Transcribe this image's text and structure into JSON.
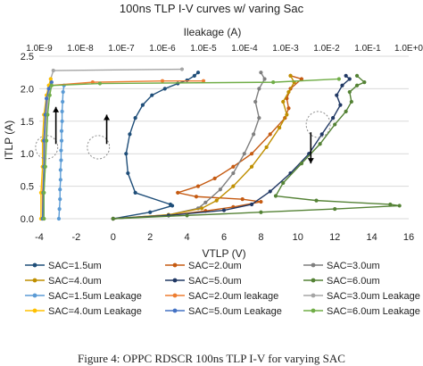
{
  "figure": {
    "caption": "Figure 4: OPPC RDSCR 100ns TLP I-V for varying SAC"
  },
  "chart_data": {
    "type": "scatter",
    "title": "100ns TLP I-V curves w/ varing Sac",
    "xlabel": "VTLP (V)",
    "ylabel": "ITLP (A)",
    "x2label": "Ileakage (A)",
    "xlim": [
      -4,
      16
    ],
    "ylim": [
      0,
      2.5
    ],
    "x2lim": [
      1e-09,
      1
    ],
    "x2scale": "log",
    "xticks": [
      "-4",
      "-2",
      "0",
      "2",
      "4",
      "6",
      "8",
      "10",
      "12",
      "14",
      "16"
    ],
    "yticks": [
      "0.0",
      "0.5",
      "1.0",
      "1.5",
      "2.0",
      "2.5"
    ],
    "x2ticks": [
      "1.0E-9",
      "1.0E-8",
      "1.0E-7",
      "1.0E-6",
      "1.0E-5",
      "1.0E-4",
      "1.0E-3",
      "1.0E-2",
      "1.0E-1",
      "1.0E+0"
    ],
    "grid": "horizontal",
    "legend_position": "bottom",
    "series": [
      {
        "name": "SAC=1.5um",
        "color": "#1f4e79",
        "axis": "bottom",
        "x": [
          0,
          2.0,
          3.2,
          3.1,
          1.2,
          0.8,
          0.7,
          0.9,
          1.2,
          1.6,
          2.1,
          2.8,
          3.5,
          4.0,
          4.4,
          4.6
        ],
        "y": [
          0.0,
          0.1,
          0.2,
          0.22,
          0.4,
          0.7,
          1.0,
          1.3,
          1.55,
          1.75,
          1.9,
          2.0,
          2.08,
          2.13,
          2.2,
          2.25
        ]
      },
      {
        "name": "SAC=2.0um",
        "color": "#c55a11",
        "axis": "bottom",
        "x": [
          0,
          3.0,
          5.0,
          6.5,
          8.0,
          7.0,
          4.5,
          3.5,
          4.6,
          5.5,
          6.5,
          7.5,
          8.5,
          9.3,
          9.5,
          9.4,
          9.6,
          10.2,
          9.6
        ],
        "y": [
          0.0,
          0.05,
          0.12,
          0.18,
          0.26,
          0.3,
          0.34,
          0.4,
          0.5,
          0.62,
          0.8,
          1.0,
          1.3,
          1.55,
          1.7,
          1.85,
          2.0,
          2.15,
          2.2
        ]
      },
      {
        "name": "SAC=3.0um",
        "color": "#7f7f7f",
        "axis": "bottom",
        "x": [
          0,
          3.0,
          4.6,
          5.0,
          5.8,
          6.5,
          7.1,
          7.6,
          7.9,
          7.7,
          7.9,
          8.2,
          8.0
        ],
        "y": [
          0.0,
          0.06,
          0.16,
          0.25,
          0.45,
          0.7,
          1.0,
          1.3,
          1.55,
          1.8,
          2.0,
          2.15,
          2.25
        ]
      },
      {
        "name": "SAC=4.0um",
        "color": "#bf8f00",
        "axis": "bottom",
        "x": [
          0,
          3.0,
          4.8,
          5.6,
          6.5,
          7.5,
          8.3,
          9.0,
          9.4,
          9.2,
          9.5,
          9.8,
          9.6
        ],
        "y": [
          0.0,
          0.06,
          0.16,
          0.28,
          0.5,
          0.8,
          1.1,
          1.4,
          1.6,
          1.8,
          1.95,
          2.1,
          2.2
        ]
      },
      {
        "name": "SAC=5.0um",
        "color": "#203864",
        "axis": "bottom",
        "x": [
          0,
          3.0,
          6.0,
          7.5,
          8.5,
          9.6,
          10.6,
          11.3,
          11.9,
          12.3,
          12.1,
          12.4,
          12.8,
          12.6
        ],
        "y": [
          0.0,
          0.05,
          0.13,
          0.22,
          0.42,
          0.7,
          1.0,
          1.3,
          1.55,
          1.75,
          1.9,
          2.05,
          2.15,
          2.2
        ]
      },
      {
        "name": "SAC=6.0um",
        "color": "#548235",
        "axis": "bottom",
        "x": [
          0,
          4.0,
          8.0,
          12.0,
          15.5,
          15.0,
          11.0,
          8.8,
          9.2,
          10.2,
          11.2,
          12.0,
          12.6,
          12.9,
          12.8,
          13.2,
          13.6,
          13.2
        ],
        "y": [
          0.0,
          0.05,
          0.1,
          0.15,
          0.2,
          0.22,
          0.28,
          0.35,
          0.55,
          0.85,
          1.15,
          1.45,
          1.65,
          1.8,
          1.95,
          2.05,
          2.1,
          2.2
        ]
      },
      {
        "name": "SAC=1.5um Leakage",
        "color": "#5b9bd5",
        "axis": "top",
        "x": [
          3e-09,
          3.1e-09,
          3.2e-09,
          3.2e-09,
          3.3e-09,
          3.3e-09,
          3.4e-09,
          3.4e-09,
          3.5e-09,
          3.5e-09,
          3.6e-09,
          3.6e-09,
          3.7e-09,
          3.8e-09,
          4e-09
        ],
        "y": [
          0.0,
          0.15,
          0.3,
          0.45,
          0.6,
          0.75,
          0.9,
          1.05,
          1.2,
          1.35,
          1.5,
          1.65,
          1.8,
          1.95,
          2.05
        ]
      },
      {
        "name": "SAC=2.0um leakage",
        "color": "#ed7d31",
        "axis": "top",
        "x": [
          1.2e-09,
          1.2e-09,
          1.3e-09,
          1.3e-09,
          1.4e-09,
          1.6e-09,
          1.8e-09,
          2e-08,
          1e-06,
          1e-05
        ],
        "y": [
          0.0,
          0.4,
          0.8,
          1.2,
          1.6,
          1.9,
          2.05,
          2.1,
          2.12,
          2.12
        ]
      },
      {
        "name": "SAC=3.0um Leakage",
        "color": "#a5a5a5",
        "axis": "top",
        "x": [
          1.3e-09,
          1.3e-09,
          1.4e-09,
          1.4e-09,
          1.5e-09,
          1.7e-09,
          1.9e-09,
          2.2e-09,
          3e-06
        ],
        "y": [
          0.0,
          0.4,
          0.8,
          1.2,
          1.6,
          1.95,
          2.15,
          2.28,
          2.3
        ]
      },
      {
        "name": "SAC=4.0um Leakage",
        "color": "#ffc000",
        "axis": "top",
        "x": [
          1.1e-09,
          1.1e-09,
          1.2e-09,
          1.2e-09,
          1.3e-09,
          1.5e-09,
          1.7e-09,
          1.9e-09
        ],
        "y": [
          0.0,
          0.4,
          0.8,
          1.2,
          1.6,
          1.9,
          2.05,
          2.15
        ]
      },
      {
        "name": "SAC=5.0um Leakage",
        "color": "#4472c4",
        "axis": "top",
        "x": [
          1.2e-09,
          1.25e-09,
          1.3e-09,
          1.3e-09,
          1.4e-09,
          1.5e-09,
          1.7e-09,
          2e-09
        ],
        "y": [
          0.0,
          0.4,
          0.8,
          1.2,
          1.6,
          1.85,
          2.0,
          2.1
        ]
      },
      {
        "name": "SAC=6.0um Leakage",
        "color": "#70ad47",
        "axis": "top",
        "x": [
          1.3e-09,
          1.3e-09,
          1.4e-09,
          1.5e-09,
          1.6e-09,
          1.8e-09,
          2e-09,
          3e-08,
          0.0005,
          0.02
        ],
        "y": [
          0.0,
          0.4,
          0.8,
          1.2,
          1.6,
          1.9,
          2.05,
          2.08,
          2.1,
          2.15
        ]
      }
    ],
    "annotations": [
      {
        "kind": "ellipse",
        "axis": "bottom",
        "x": -3.6,
        "y": 1.1,
        "rx": 0.6,
        "ry": 0.18
      },
      {
        "kind": "ellipse",
        "axis": "bottom",
        "x": -0.8,
        "y": 1.1,
        "rx": 0.6,
        "ry": 0.18
      },
      {
        "kind": "ellipse",
        "axis": "bottom",
        "x": 11.1,
        "y": 1.45,
        "rx": 0.65,
        "ry": 0.2
      },
      {
        "kind": "arrow",
        "axis": "bottom",
        "x": -3.1,
        "y1": 1.15,
        "y2": 1.72
      },
      {
        "kind": "arrow",
        "axis": "bottom",
        "x": -0.35,
        "y1": 1.15,
        "y2": 1.6
      },
      {
        "kind": "arrow",
        "axis": "bottom",
        "x": 10.7,
        "y1": 1.33,
        "y2": 0.85
      }
    ]
  }
}
